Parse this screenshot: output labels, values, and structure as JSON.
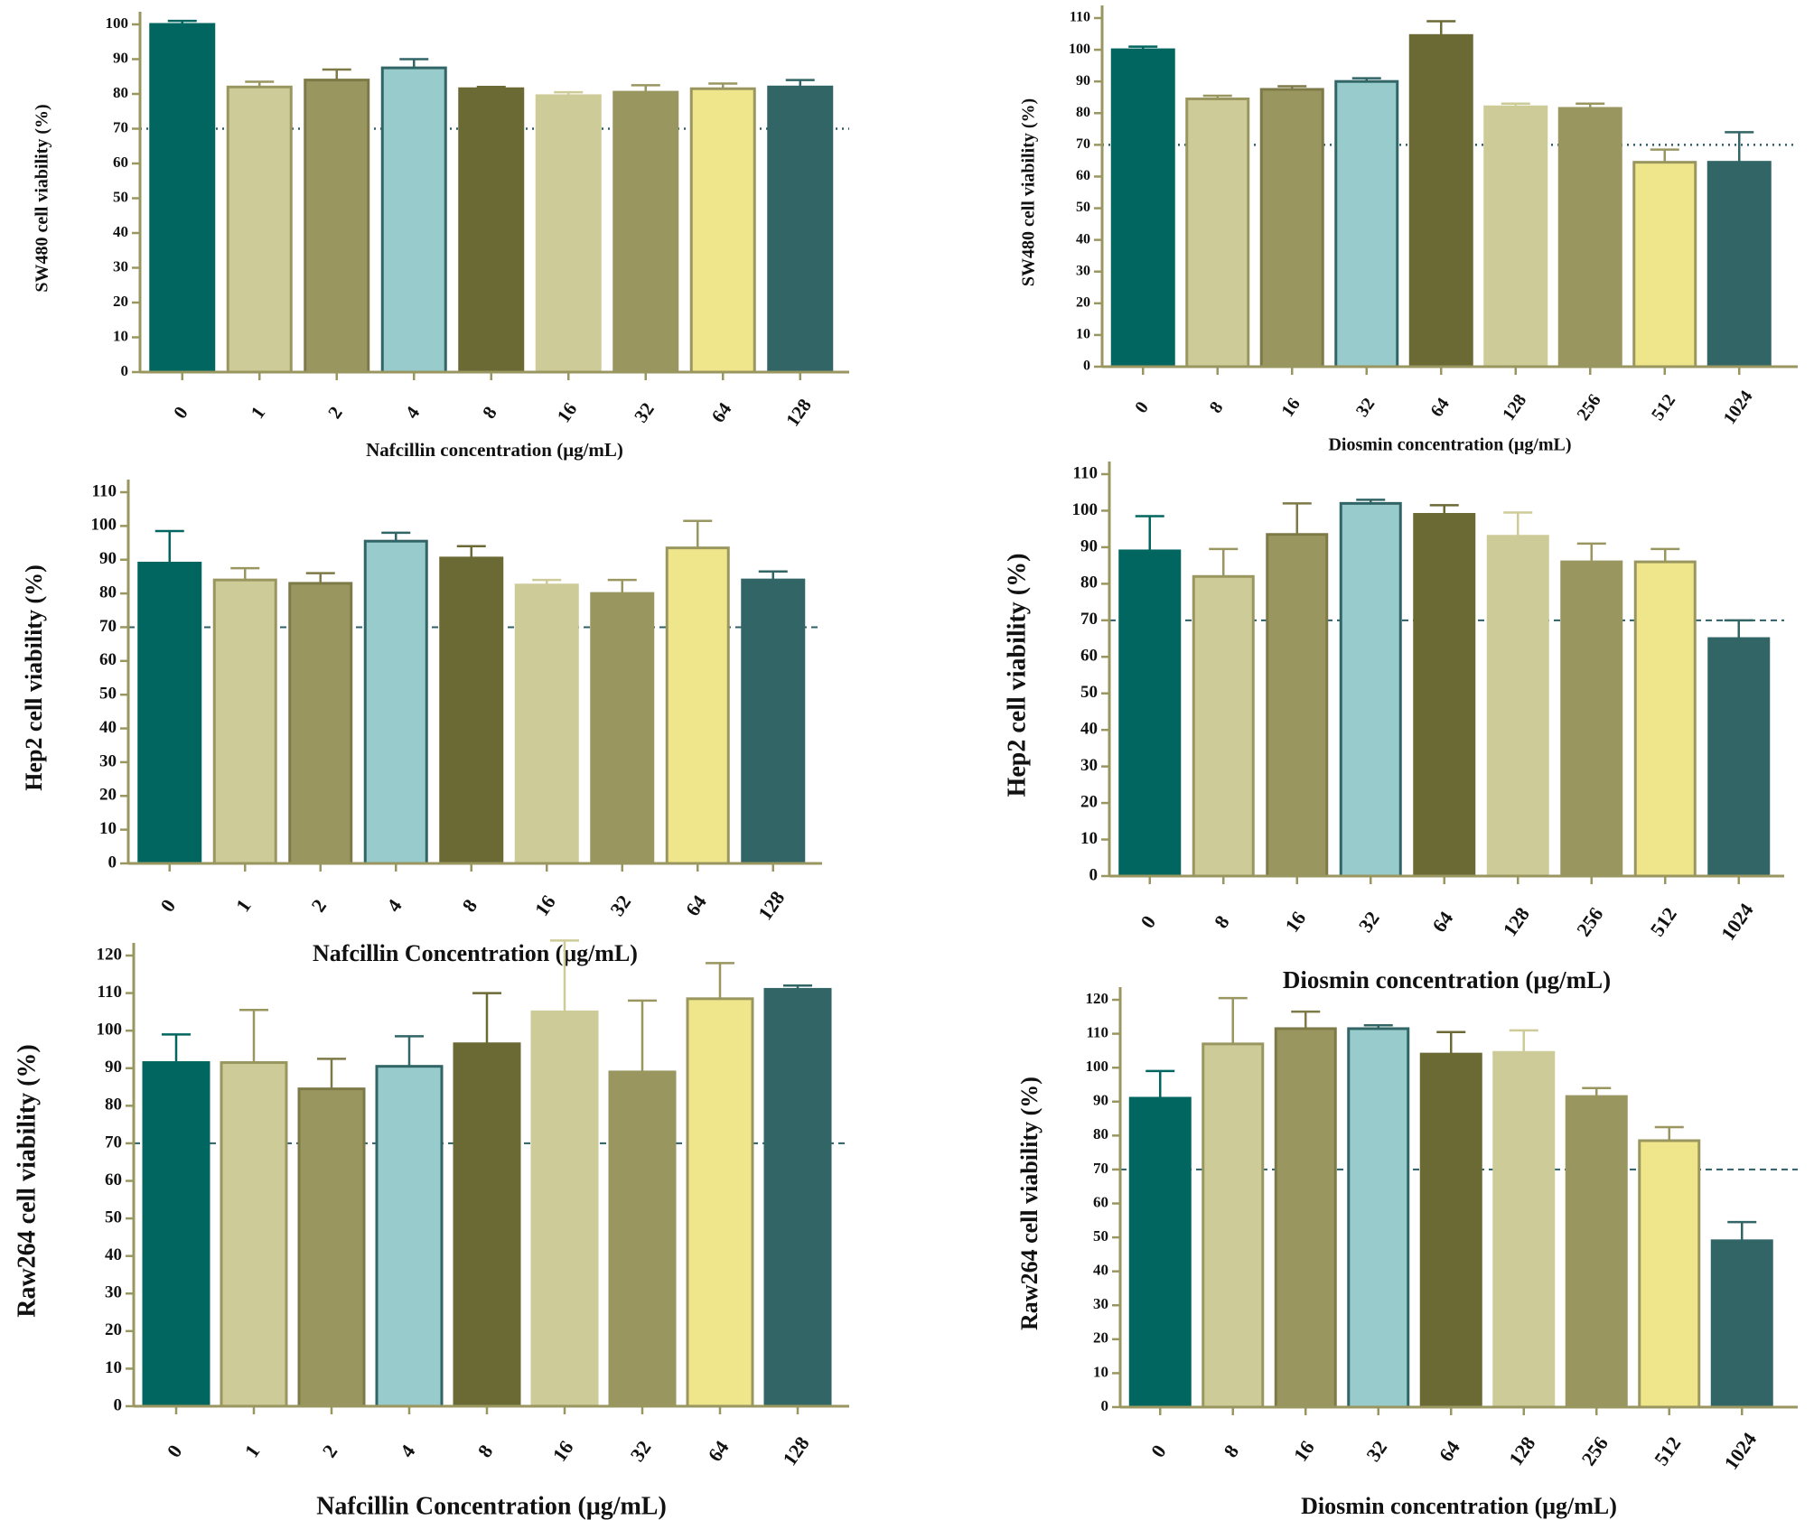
{
  "colors": {
    "axis": "#9a9660",
    "threshold": "#2f5f66",
    "bar_fills": [
      "#00665f",
      "#cdcb97",
      "#9a9660",
      "#98cbcb",
      "#6b6a35",
      "#cdcb97",
      "#9a9660",
      "#efe58a",
      "#316566"
    ],
    "bar_strokes": [
      "#00665f",
      "#9a9660",
      "#7d7a48",
      "#316566",
      "#6b6a35",
      "#cdcb97",
      "#9a9660",
      "#9a9660",
      "#316566"
    ]
  },
  "chart_data": [
    {
      "id": "sw480-nafcillin",
      "type": "bar",
      "ylabel": "SW480 cell viability (%)",
      "xlabel": "Nafcillin concentration (μg/mL)",
      "categories": [
        "0",
        "1",
        "2",
        "4",
        "8",
        "16",
        "32",
        "64",
        "128"
      ],
      "values": [
        100,
        82,
        84,
        87.5,
        81.5,
        79.5,
        80.5,
        81.5,
        82
      ],
      "errors": [
        1,
        1.5,
        3,
        2.5,
        0.5,
        1,
        2,
        1.5,
        2
      ],
      "ylim": [
        0,
        100
      ],
      "yticks": [
        0,
        10,
        20,
        30,
        40,
        50,
        60,
        70,
        80,
        90,
        100
      ],
      "threshold": 70,
      "threshold_style": "dotted"
    },
    {
      "id": "sw480-diosmin",
      "type": "bar",
      "ylabel": "SW480 cell viability (%)",
      "xlabel": "Diosmin concentration (μg/mL)",
      "categories": [
        "0",
        "8",
        "16",
        "32",
        "64",
        "128",
        "256",
        "512",
        "1024"
      ],
      "values": [
        100,
        84.5,
        87.5,
        90,
        104.5,
        82,
        81.5,
        64.5,
        64.5
      ],
      "errors": [
        1,
        1,
        1,
        1,
        4.5,
        1,
        1.5,
        4,
        9.5
      ],
      "ylim": [
        0,
        110
      ],
      "yticks": [
        0,
        10,
        20,
        30,
        40,
        50,
        60,
        70,
        80,
        90,
        100,
        110
      ],
      "threshold": 70,
      "threshold_style": "dotted"
    },
    {
      "id": "hep2-nafcillin",
      "type": "bar",
      "ylabel": "Hep2 cell viability (%)",
      "xlabel": "Nafcillin Concentration (μg/mL)",
      "categories": [
        "0",
        "1",
        "2",
        "4",
        "8",
        "16",
        "32",
        "64",
        "128"
      ],
      "values": [
        89,
        84,
        83,
        95.5,
        90.5,
        82.5,
        80,
        93.5,
        84
      ],
      "errors": [
        9.5,
        3.5,
        3,
        2.5,
        3.5,
        1.5,
        4,
        8,
        2.5
      ],
      "ylim": [
        0,
        110
      ],
      "yticks": [
        0,
        10,
        20,
        30,
        40,
        50,
        60,
        70,
        80,
        90,
        100,
        110
      ],
      "threshold": 70,
      "threshold_style": "dashed"
    },
    {
      "id": "hep2-diosmin",
      "type": "bar",
      "ylabel": "Hep2 cell viability (%)",
      "xlabel": "Diosmin concentration (μg/mL)",
      "categories": [
        "0",
        "8",
        "16",
        "32",
        "64",
        "128",
        "256",
        "512",
        "1024"
      ],
      "values": [
        89,
        82,
        93.5,
        102,
        99,
        93,
        86,
        86,
        65
      ],
      "errors": [
        9.5,
        7.5,
        8.5,
        1,
        2.5,
        6.5,
        5,
        3.5,
        5
      ],
      "ylim": [
        0,
        110
      ],
      "yticks": [
        0,
        10,
        20,
        30,
        40,
        50,
        60,
        70,
        80,
        90,
        100,
        110
      ],
      "threshold": 70,
      "threshold_style": "dashed"
    },
    {
      "id": "raw264-nafcillin",
      "type": "bar",
      "ylabel": "Raw264 cell viability (%)",
      "xlabel": "Nafcillin Concentration (μg/mL)",
      "categories": [
        "0",
        "1",
        "2",
        "4",
        "8",
        "16",
        "32",
        "64",
        "128"
      ],
      "values": [
        91.5,
        91.5,
        84.5,
        90.5,
        96.5,
        105,
        89,
        108.5,
        111
      ],
      "errors": [
        7.5,
        14,
        8,
        8,
        13.5,
        19,
        19,
        9.5,
        1
      ],
      "ylim": [
        0,
        120
      ],
      "yticks": [
        0,
        10,
        20,
        30,
        40,
        50,
        60,
        70,
        80,
        90,
        100,
        110,
        120
      ],
      "threshold": 70,
      "threshold_style": "dashed"
    },
    {
      "id": "raw264-diosmin",
      "type": "bar",
      "ylabel": "Raw264 cell viability (%)",
      "xlabel": "Diosmin concentration (μg/mL)",
      "categories": [
        "0",
        "8",
        "16",
        "32",
        "64",
        "128",
        "256",
        "512",
        "1024"
      ],
      "values": [
        91,
        107,
        111.5,
        111.5,
        104,
        104.5,
        91.5,
        78.5,
        49
      ],
      "errors": [
        8,
        13.5,
        5,
        1,
        6.5,
        6.5,
        2.5,
        4,
        5.5
      ],
      "ylim": [
        0,
        120
      ],
      "yticks": [
        0,
        10,
        20,
        30,
        40,
        50,
        60,
        70,
        80,
        90,
        100,
        110,
        120
      ],
      "threshold": 70,
      "threshold_style": "dashed"
    }
  ]
}
